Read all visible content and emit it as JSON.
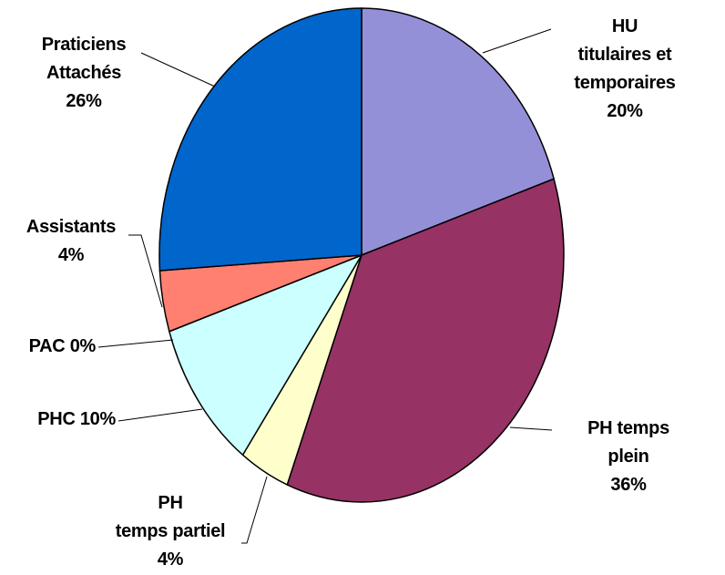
{
  "chart_data": {
    "type": "pie",
    "categories": [
      "HU titulaires et\ntemporaires",
      "PH temps plein",
      "PH\ntemps partiel",
      "PHC",
      "PAC",
      "Assistants",
      "Praticiens\nAttachés"
    ],
    "values": [
      20,
      36,
      4,
      10,
      0,
      4,
      26
    ],
    "value_labels": [
      "20%",
      "36%",
      "4%",
      "10%",
      "0%",
      "4%",
      "26%"
    ],
    "colors": [
      "#9490d8",
      "#963264",
      "#ffffcc",
      "#ccffff",
      "#ffcc99",
      "#ff8070",
      "#0066cc"
    ]
  }
}
